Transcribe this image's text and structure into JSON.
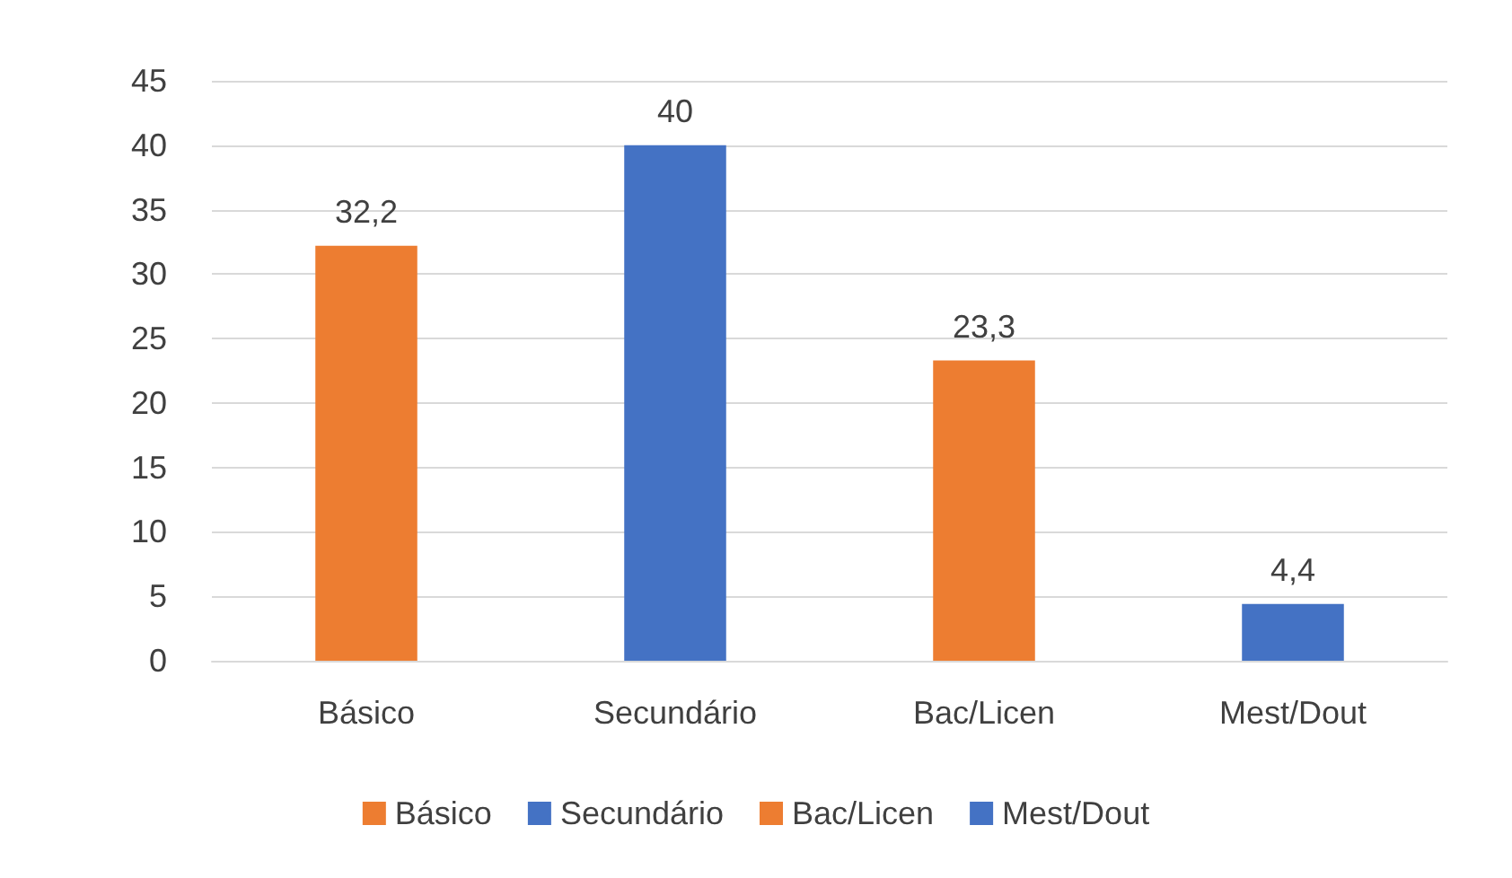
{
  "chart_data": {
    "type": "bar",
    "categories": [
      "Básico",
      "Secundário",
      "Bac/Licen",
      "Mest/Dout"
    ],
    "stacked": true,
    "series": [
      {
        "name": "Básico",
        "color": "#ed7d31",
        "values": [
          32.2,
          null,
          null,
          null
        ],
        "value_labels": [
          "32,2",
          null,
          null,
          null
        ]
      },
      {
        "name": "Secundário",
        "color": "#4472c4",
        "values": [
          null,
          40,
          null,
          null
        ],
        "value_labels": [
          null,
          "40",
          null,
          null
        ]
      },
      {
        "name": "Bac/Licen",
        "color": "#ed7d31",
        "values": [
          null,
          null,
          23.3,
          null
        ],
        "value_labels": [
          null,
          null,
          "23,3",
          null
        ]
      },
      {
        "name": "Mest/Dout",
        "color": "#4472c4",
        "values": [
          null,
          null,
          null,
          4.4
        ],
        "value_labels": [
          null,
          null,
          null,
          "4,4"
        ]
      }
    ],
    "ylim": [
      0,
      45
    ],
    "yticks": [
      0,
      5,
      10,
      15,
      20,
      25,
      30,
      35,
      40,
      45
    ],
    "grid": "y",
    "legend": "bottom"
  }
}
